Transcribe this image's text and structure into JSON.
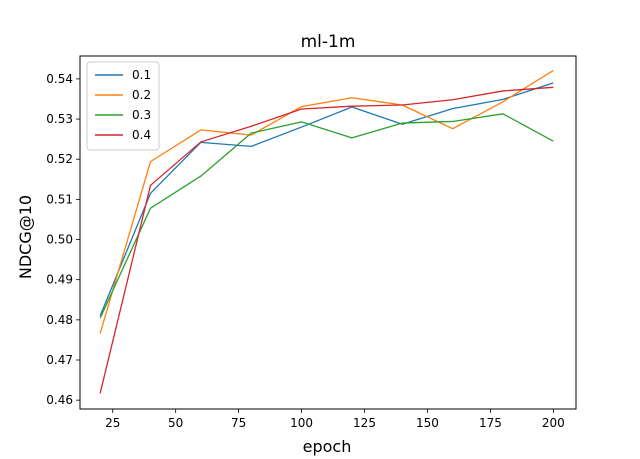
{
  "chart_data": {
    "type": "line",
    "title": "ml-1m",
    "xlabel": "epoch",
    "ylabel": "NDCG@10",
    "x": [
      20,
      40,
      60,
      80,
      100,
      120,
      140,
      160,
      180,
      200
    ],
    "xlim": [
      12,
      209
    ],
    "ylim": [
      0.4578,
      0.5457
    ],
    "xticks": [
      25,
      50,
      75,
      100,
      125,
      150,
      175,
      200
    ],
    "yticks": [
      0.46,
      0.47,
      0.48,
      0.49,
      0.5,
      0.51,
      0.52,
      0.53,
      0.54
    ],
    "ytick_labels": [
      "0.46",
      "0.47",
      "0.48",
      "0.49",
      "0.50",
      "0.51",
      "0.52",
      "0.53",
      "0.54"
    ],
    "grid": false,
    "legend_position": "upper-left",
    "series": [
      {
        "name": "0.1",
        "color": "#1f77b4",
        "values": [
          0.481,
          0.5115,
          0.5242,
          0.5232,
          0.528,
          0.533,
          0.5287,
          0.5326,
          0.5349,
          0.539
        ]
      },
      {
        "name": "0.2",
        "color": "#ff7f0e",
        "values": [
          0.4766,
          0.5194,
          0.5273,
          0.526,
          0.5331,
          0.5353,
          0.5335,
          0.5276,
          0.5343,
          0.5421
        ]
      },
      {
        "name": "0.3",
        "color": "#2ca02c",
        "values": [
          0.4804,
          0.5078,
          0.5158,
          0.5265,
          0.5293,
          0.5253,
          0.529,
          0.5294,
          0.5313,
          0.5245
        ]
      },
      {
        "name": "0.4",
        "color": "#d62728",
        "values": [
          0.4617,
          0.5135,
          0.5243,
          0.5282,
          0.5325,
          0.5332,
          0.5335,
          0.5348,
          0.537,
          0.5379
        ]
      }
    ]
  }
}
